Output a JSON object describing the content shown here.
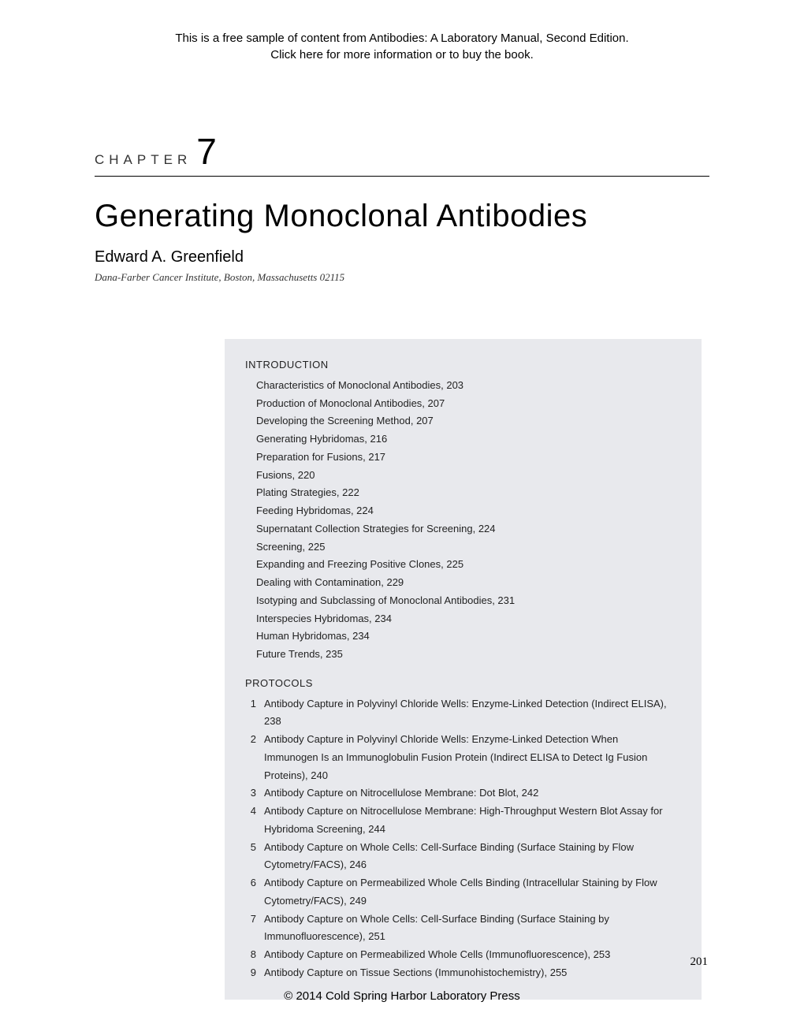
{
  "sample_header": {
    "line1": "This is a free sample of content from Antibodies: A Laboratory Manual, Second Edition.",
    "line2": "Click here for more information or to buy the book."
  },
  "chapter": {
    "label": "CHAPTER",
    "number": "7"
  },
  "title": "Generating Monoclonal Antibodies",
  "author": "Edward A. Greenfield",
  "affiliation": "Dana-Farber Cancer Institute, Boston, Massachusetts 02115",
  "toc": {
    "introduction_heading": "INTRODUCTION",
    "introduction_items": [
      "Characteristics of Monoclonal Antibodies, 203",
      "Production of Monoclonal Antibodies, 207",
      "Developing the Screening Method, 207",
      "Generating Hybridomas, 216",
      "Preparation for Fusions, 217",
      "Fusions, 220",
      "Plating Strategies, 222",
      "Feeding Hybridomas, 224",
      "Supernatant Collection Strategies for Screening, 224",
      "Screening, 225",
      "Expanding and Freezing Positive Clones, 225",
      "Dealing with Contamination, 229",
      "Isotyping and Subclassing of Monoclonal Antibodies, 231",
      "Interspecies Hybridomas, 234",
      "Human Hybridomas, 234",
      "Future Trends, 235"
    ],
    "protocols_heading": "PROTOCOLS",
    "protocols_items": [
      {
        "num": "1",
        "text": "Antibody Capture in Polyvinyl Chloride Wells: Enzyme-Linked Detection (Indirect ELISA), 238"
      },
      {
        "num": "2",
        "text": "Antibody Capture in Polyvinyl Chloride Wells: Enzyme-Linked Detection When Immunogen Is an Immunoglobulin Fusion Protein (Indirect ELISA to Detect Ig Fusion Proteins), 240"
      },
      {
        "num": "3",
        "text": "Antibody Capture on Nitrocellulose Membrane: Dot Blot, 242"
      },
      {
        "num": "4",
        "text": "Antibody Capture on Nitrocellulose Membrane: High-Throughput Western Blot Assay for Hybridoma Screening, 244"
      },
      {
        "num": "5",
        "text": "Antibody Capture on Whole Cells: Cell-Surface Binding (Surface Staining by Flow Cytometry/FACS), 246"
      },
      {
        "num": "6",
        "text": "Antibody Capture on Permeabilized Whole Cells Binding (Intracellular Staining by Flow Cytometry/FACS), 249"
      },
      {
        "num": "7",
        "text": "Antibody Capture on Whole Cells: Cell-Surface Binding (Surface Staining by Immunofluorescence), 251"
      },
      {
        "num": "8",
        "text": "Antibody Capture on Permeabilized Whole Cells (Immunofluorescence), 253"
      },
      {
        "num": "9",
        "text": "Antibody Capture on Tissue Sections (Immunohistochemistry), 255"
      }
    ]
  },
  "page_number": "201",
  "copyright": "© 2014 Cold Spring Harbor Laboratory Press",
  "colors": {
    "background": "#ffffff",
    "text": "#000000",
    "toc_background": "#e8e9ed",
    "hr": "#000000"
  },
  "fonts": {
    "body_font": "Georgia, serif",
    "heading_font": "Optima, sans-serif",
    "header_font": "Arial, sans-serif",
    "title_size_pt": 30,
    "author_size_pt": 15,
    "affiliation_size_pt": 10,
    "toc_size_pt": 10,
    "chapter_num_size_pt": 35
  }
}
